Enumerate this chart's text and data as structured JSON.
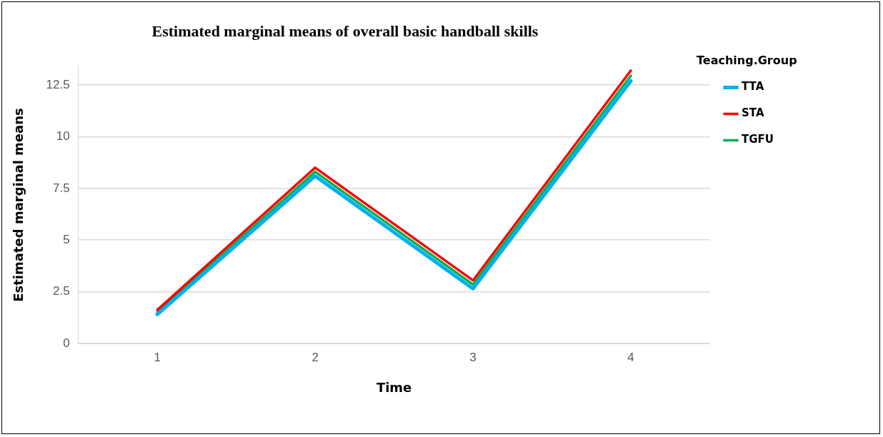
{
  "chart_data": {
    "type": "line",
    "title": "Estimated marginal means of overall basic handball skills",
    "xlabel": "Time",
    "ylabel": "Estimated marginal means",
    "legend_title": "Teaching.Group",
    "categories": [
      "1",
      "2",
      "3",
      "4"
    ],
    "series": [
      {
        "name": "TTA",
        "color": "#00b0f0",
        "values": [
          1.4,
          8.1,
          2.65,
          12.7
        ]
      },
      {
        "name": "STA",
        "color": "#ff0000",
        "values": [
          1.62,
          8.5,
          3.05,
          13.2
        ]
      },
      {
        "name": "TGFU",
        "color": "#00b050",
        "values": [
          1.5,
          8.3,
          2.85,
          12.95
        ]
      }
    ],
    "ylim": [
      0,
      13.4
    ],
    "yticks": [
      0,
      {
        "value": 2.5,
        "label": "2.5"
      },
      5,
      {
        "value": 7.5,
        "label": "7.5"
      },
      10,
      {
        "value": 12.5,
        "label": "12.5"
      }
    ],
    "grid": "y",
    "legend": "right",
    "marker": "none",
    "line_style": "solid"
  }
}
